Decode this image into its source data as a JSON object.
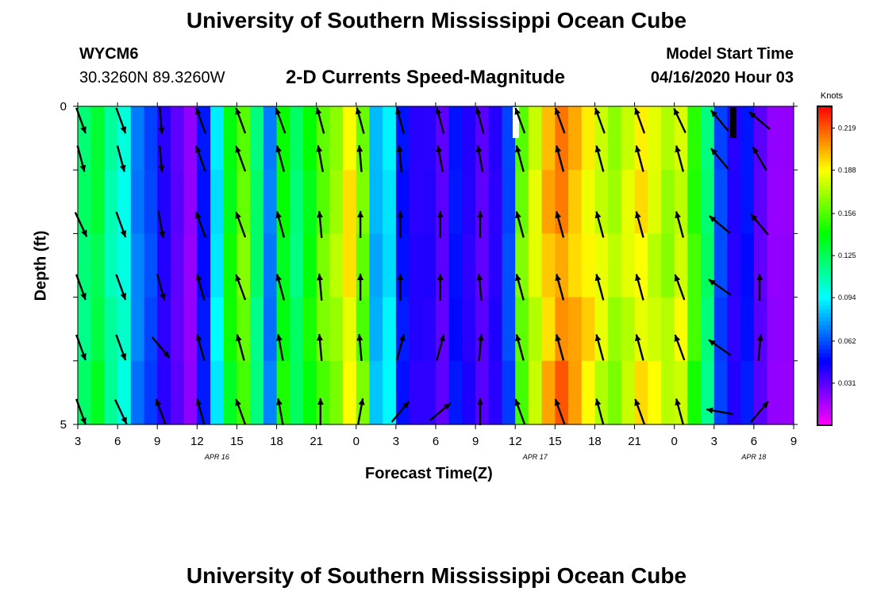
{
  "header": {
    "title": "University of Southern Mississippi Ocean Cube",
    "station_id": "WYCM6",
    "coords": "30.3260N 89.3260W",
    "subtitle": "2-D Currents Speed-Magnitude",
    "model_start_label": "Model Start Time",
    "model_start_value": "04/16/2020 Hour 03"
  },
  "footer": {
    "title": "University of Southern Mississippi Ocean Cube"
  },
  "chart_data": {
    "type": "heatmap",
    "title": "2-D Currents Speed-Magnitude",
    "xlabel": "Forecast Time(Z)",
    "ylabel": "Depth (ft)",
    "ylim": [
      0,
      5
    ],
    "x_tick_labels": [
      "3",
      "6",
      "9",
      "12",
      "15",
      "18",
      "21",
      "0",
      "3",
      "6",
      "9",
      "12",
      "15",
      "18",
      "21",
      "0",
      "3",
      "6",
      "9"
    ],
    "date_labels": [
      {
        "label": "APR 16",
        "tick_index": 3.5
      },
      {
        "label": "APR 17",
        "tick_index": 11.5
      },
      {
        "label": "APR 18",
        "tick_index": 17
      }
    ],
    "y_tick_labels": [
      "0",
      "5"
    ],
    "colorbar": {
      "unit": "Knots",
      "min": 0.0,
      "max": 0.235,
      "ticks": [
        "0.219",
        "0.188",
        "0.156",
        "0.125",
        "0.094",
        "0.062",
        "0.031"
      ],
      "tick_values": [
        0.219,
        0.188,
        0.156,
        0.125,
        0.094,
        0.062,
        0.031
      ]
    },
    "hours": 54,
    "depth_layers": 5,
    "speed_knots_by_hour": [
      0.12,
      0.13,
      0.11,
      0.1,
      0.07,
      0.06,
      0.04,
      0.03,
      0.02,
      0.05,
      0.09,
      0.14,
      0.16,
      0.12,
      0.07,
      0.14,
      0.12,
      0.14,
      0.16,
      0.17,
      0.19,
      0.16,
      0.08,
      0.09,
      0.05,
      0.04,
      0.04,
      0.03,
      0.05,
      0.04,
      0.03,
      0.04,
      0.06,
      0.16,
      0.18,
      0.2,
      0.21,
      0.2,
      0.19,
      0.18,
      0.17,
      0.18,
      0.19,
      0.18,
      0.17,
      0.18,
      0.15,
      0.12,
      0.06,
      0.04,
      0.05,
      0.03,
      0.02,
      0.02
    ],
    "arrow_angles_deg": [
      [
        160,
        160,
        175,
        -20,
        -20,
        -20,
        -15,
        -15,
        -15,
        -15,
        -15,
        -20,
        -20,
        -20,
        -20,
        -25,
        -40,
        -50
      ],
      [
        165,
        165,
        175,
        -20,
        -20,
        -15,
        -10,
        -5,
        -5,
        -10,
        -10,
        -15,
        -15,
        -15,
        -15,
        -15,
        -40,
        -30
      ],
      [
        155,
        160,
        170,
        -20,
        -20,
        -15,
        -5,
        0,
        0,
        0,
        0,
        -15,
        -15,
        -15,
        -15,
        -15,
        -50,
        -40
      ],
      [
        160,
        160,
        165,
        -15,
        -20,
        -15,
        -5,
        0,
        0,
        0,
        -5,
        -15,
        -15,
        -15,
        -15,
        -20,
        -55,
        0
      ],
      [
        160,
        160,
        140,
        -15,
        -15,
        -10,
        -5,
        -5,
        15,
        15,
        5,
        -15,
        -15,
        -15,
        -15,
        -20,
        -55,
        5
      ],
      [
        160,
        155,
        -20,
        -15,
        -20,
        -10,
        0,
        10,
        40,
        50,
        0,
        -20,
        -20,
        -15,
        -20,
        -15,
        -80,
        40
      ]
    ]
  }
}
